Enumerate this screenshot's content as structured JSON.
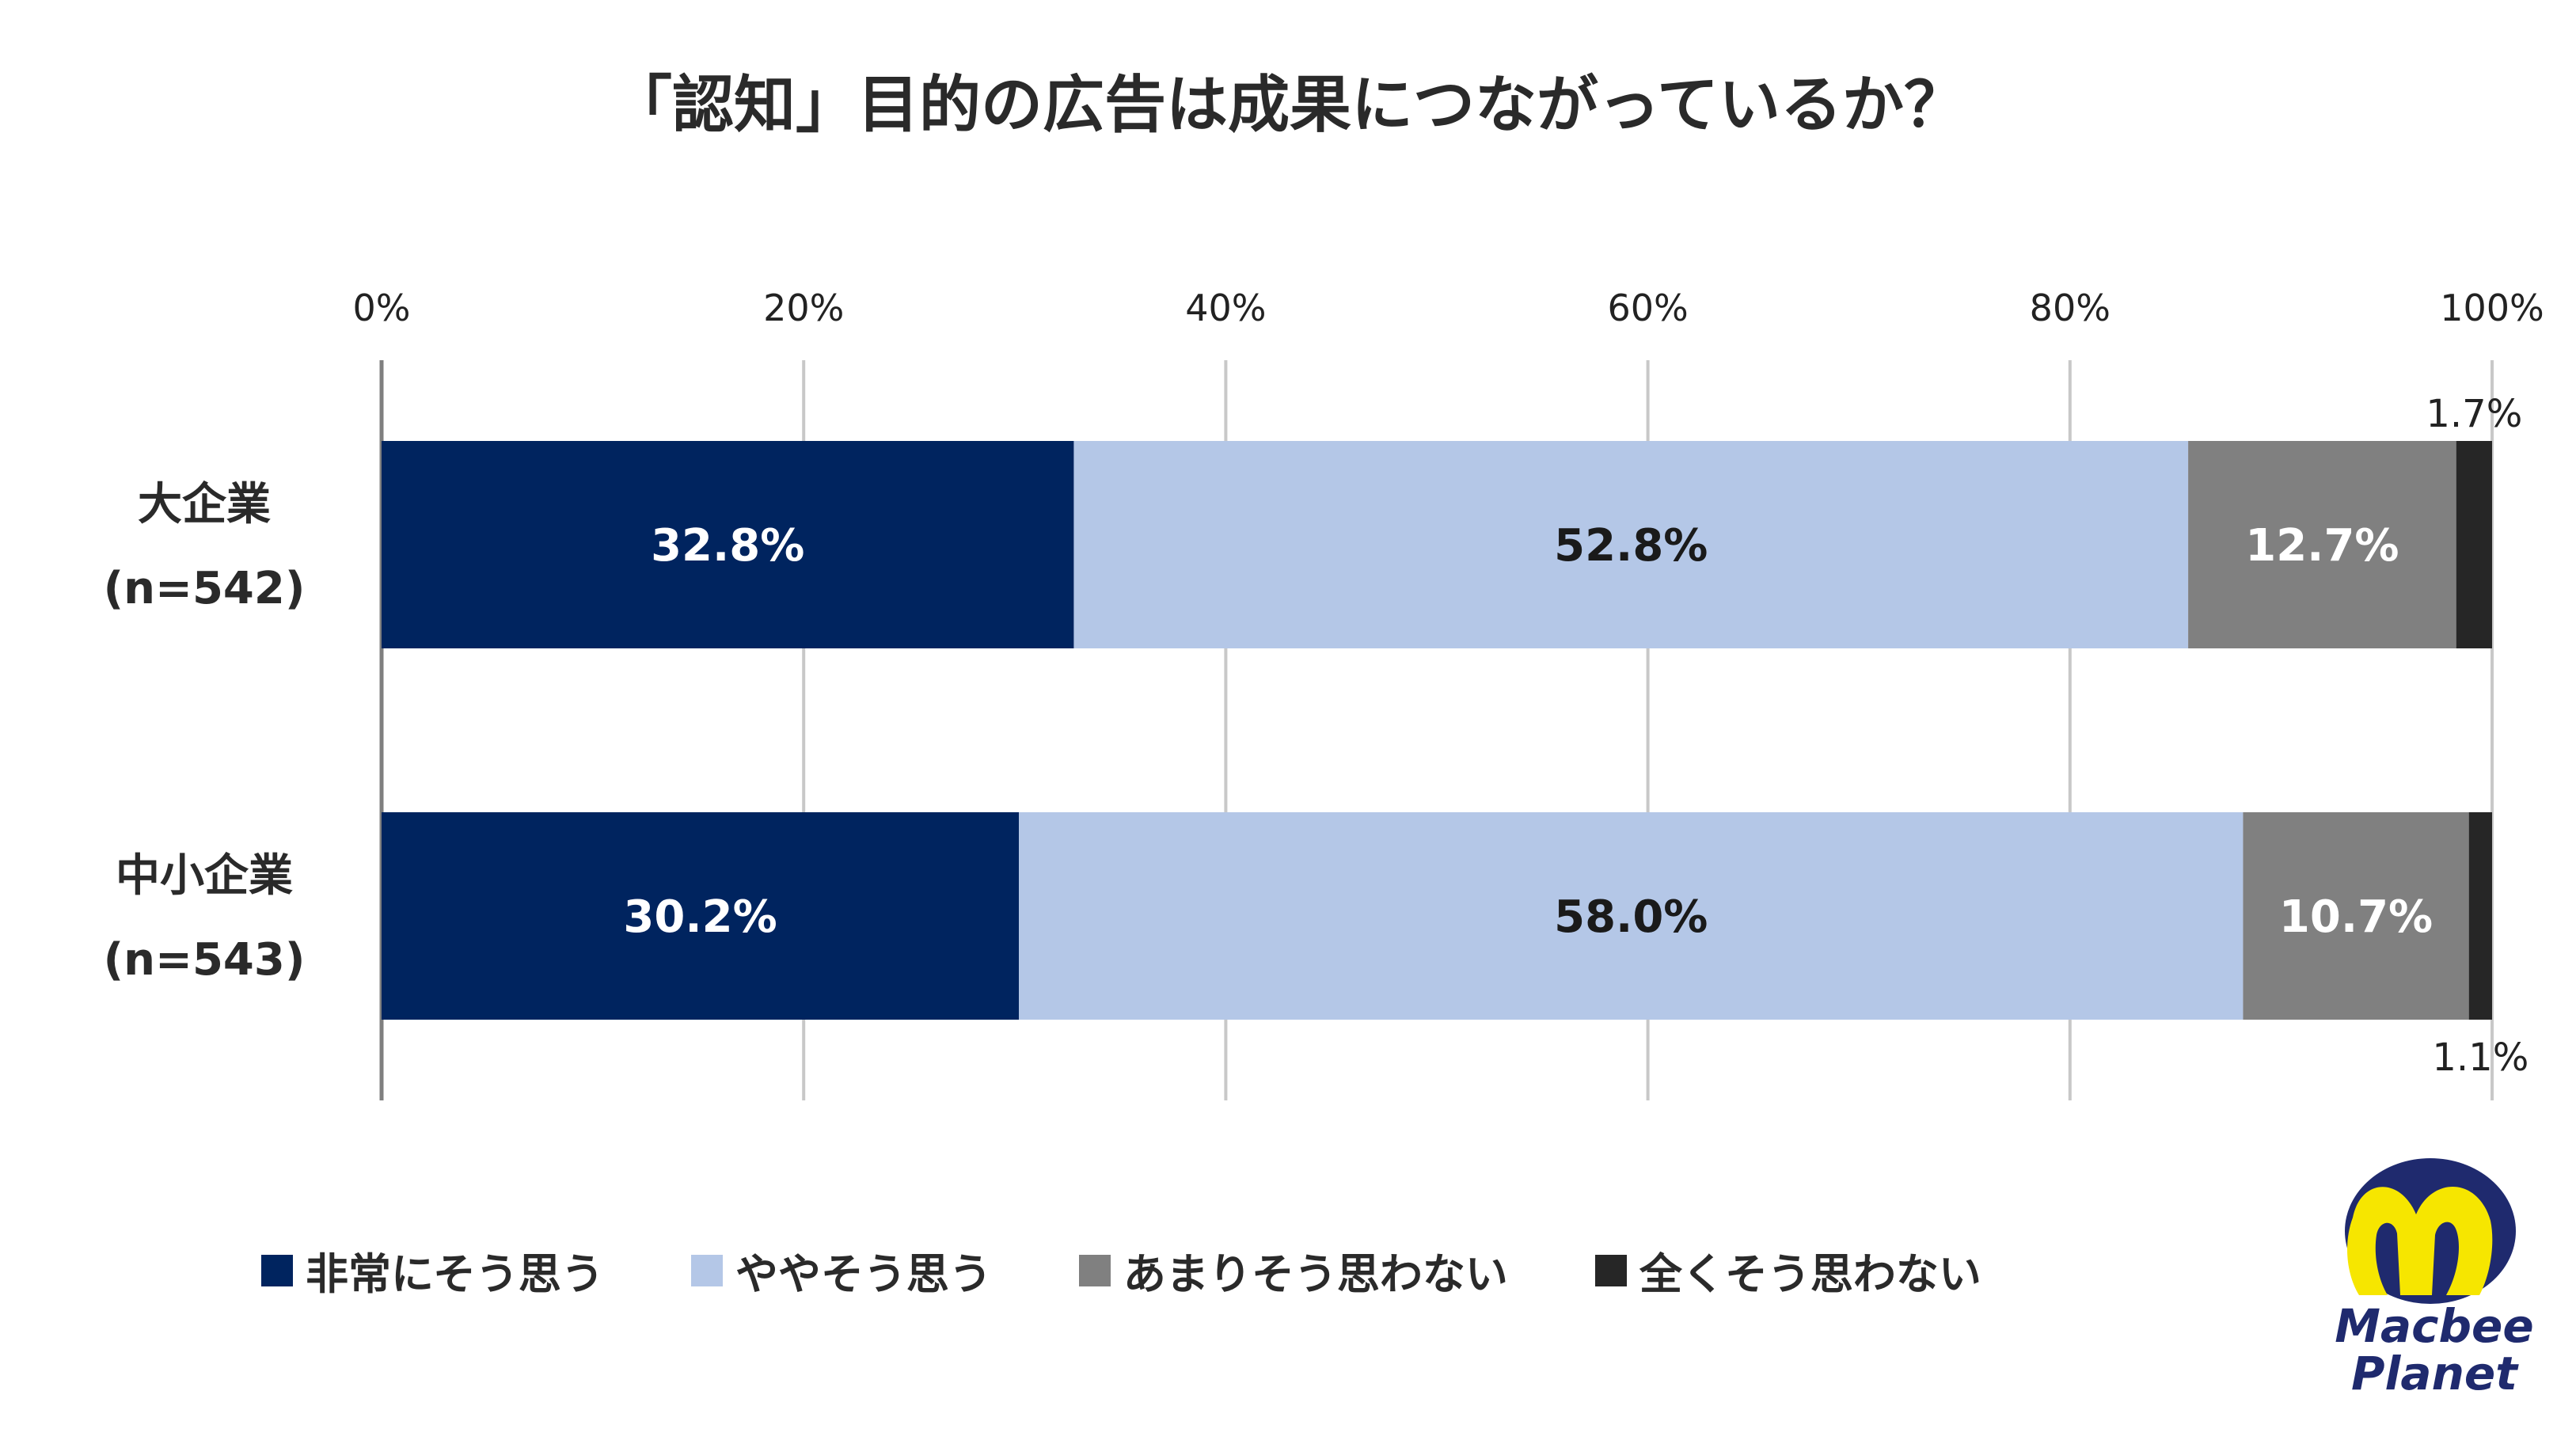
{
  "chart_data": {
    "type": "bar",
    "orientation": "horizontal",
    "stacked": true,
    "title": "「認知」目的の広告は成果につながっているか？",
    "categories": [
      "大企業\n(n=542)",
      "中小企業\n(n=543)"
    ],
    "categories_lines": [
      [
        "大企業",
        "(n=542)"
      ],
      [
        "中小企業",
        "(n=543)"
      ]
    ],
    "xlim": [
      0,
      100
    ],
    "x_ticks": [
      "0%",
      "20%",
      "40%",
      "60%",
      "80%",
      "100%"
    ],
    "x_tick_values": [
      0,
      20,
      40,
      60,
      80,
      100
    ],
    "grid": true,
    "legend_position": "bottom",
    "series": [
      {
        "name": "非常にそう思う",
        "values": [
          32.8,
          30.2
        ],
        "labels": [
          "32.8%",
          "30.2%"
        ],
        "color": "#00245f",
        "label_color": "#ffffff"
      },
      {
        "name": "ややそう思う",
        "values": [
          52.8,
          58.0
        ],
        "labels": [
          "52.8%",
          "58.0%"
        ],
        "color": "#b4c7e7",
        "label_color": "#1a1a1a"
      },
      {
        "name": "あまりそう思わない",
        "values": [
          12.7,
          10.7
        ],
        "labels": [
          "12.7%",
          "10.7%"
        ],
        "color": "#808080",
        "label_color": "#ffffff"
      },
      {
        "name": "全くそう思わない",
        "values": [
          1.7,
          1.1
        ],
        "labels": [
          "1.7%",
          "1.1%"
        ],
        "color": "#262626",
        "label_color": "#222222"
      }
    ]
  },
  "logo": {
    "line1": "Macbee",
    "line2": "Planet",
    "colors": {
      "navy": "#1f2a6e",
      "yellow": "#f6e600"
    }
  }
}
